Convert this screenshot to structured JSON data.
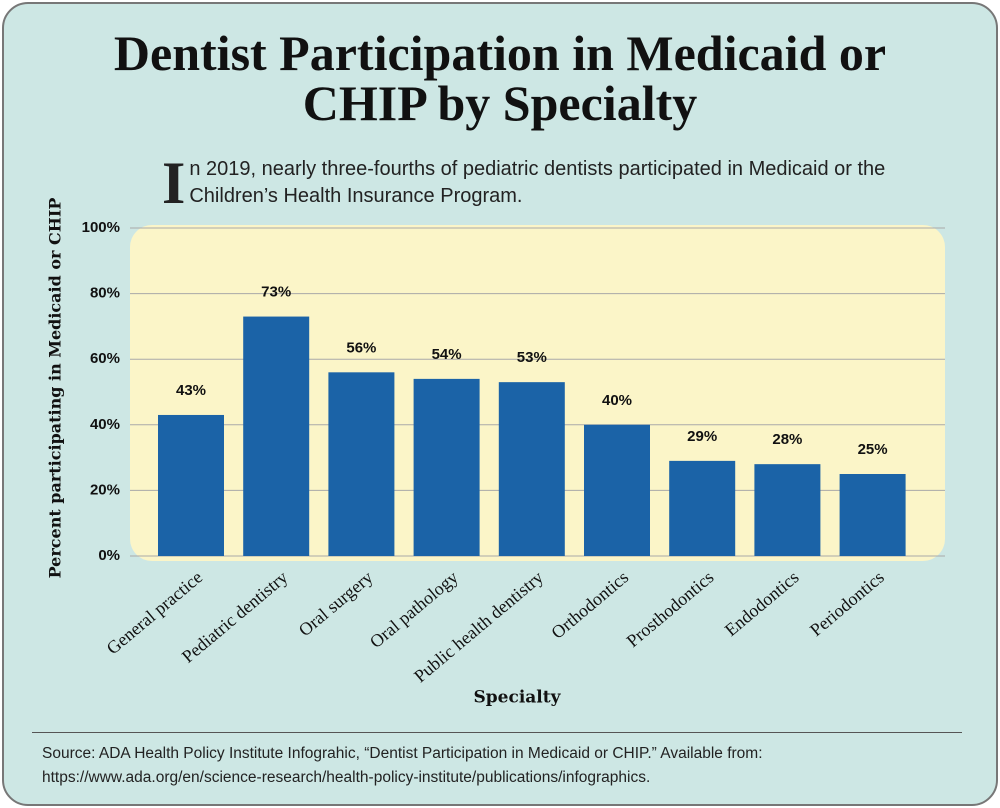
{
  "chart_data": {
    "type": "bar",
    "title": "Dentist Participation in Medicaid or CHIP by Specialty",
    "subtitle": "In 2019, nearly three-fourths of pediatric dentists participated in Medicaid or the Children’s Health Insurance Program.",
    "x_label": "Specialty",
    "y_label": "Percent participating in Medicaid or CHIP",
    "categories": [
      "General practice",
      "Pediatric dentistry",
      "Oral surgery",
      "Oral pathology",
      "Public health dentistry",
      "Orthodontics",
      "Prosthodontics",
      "Endodontics",
      "Periodontics"
    ],
    "values": [
      43,
      73,
      56,
      54,
      53,
      40,
      29,
      28,
      25
    ],
    "value_labels": [
      "43%",
      "73%",
      "56%",
      "54%",
      "53%",
      "40%",
      "29%",
      "28%",
      "25%"
    ],
    "color": "#1b63a7",
    "ylim": [
      0,
      100
    ],
    "yticks": [
      {
        "value": 0,
        "label": "0%"
      },
      {
        "value": 20,
        "label": "20%"
      },
      {
        "value": 40,
        "label": "40%"
      },
      {
        "value": 60,
        "label": "60%"
      },
      {
        "value": 80,
        "label": "80%"
      },
      {
        "value": 100,
        "label": "100%"
      }
    ],
    "grid": true,
    "source": "Source: ADA Health Policy Institute Infograhic, “Dentist Participation in Medicaid or CHIP.” Available from: https://www.ada.org/en/science-research/health-policy-institute/publications/infographics."
  }
}
